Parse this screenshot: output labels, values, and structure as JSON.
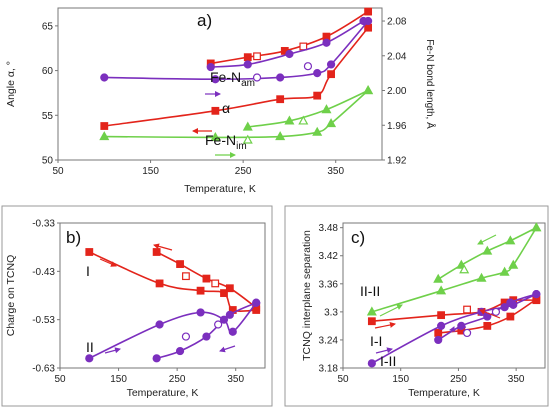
{
  "chart_data": [
    {
      "panel_label": "a)",
      "type": "line",
      "xlabel": "Temperature, K",
      "ylabel": "Angle α, °",
      "y2label": "Fe-N bond length, Å",
      "xlim": [
        50,
        400
      ],
      "ylim": [
        50,
        67
      ],
      "y2lim": [
        1.92,
        2.095
      ],
      "x_ticks": [
        "50",
        "150",
        "250",
        "350"
      ],
      "y_ticks": [
        "50",
        "55",
        "60",
        "65"
      ],
      "y2_ticks": [
        "1.92",
        "1.96",
        "2.00",
        "2.04",
        "2.08"
      ],
      "annotations": [
        {
          "text": "Fe-N",
          "sub": "am"
        },
        {
          "text": "α",
          "sub": ""
        },
        {
          "text": "Fe-N",
          "sub": "im"
        }
      ],
      "grid": false,
      "series": [
        {
          "color": "#e3241b",
          "marker": "square",
          "axis": "y",
          "arrow": "right",
          "x": [
            100,
            220,
            290,
            330,
            345,
            385
          ],
          "y": [
            53.8,
            55.5,
            56.8,
            57.2,
            59.6,
            64.8
          ]
        },
        {
          "color": "#e3241b",
          "marker": "square",
          "axis": "y",
          "arrow": "left",
          "x": [
            385,
            340,
            295,
            255,
            215
          ],
          "y": [
            66.6,
            63.8,
            62.2,
            61.5,
            60.8
          ]
        },
        {
          "color": "#e3241b",
          "marker": "square-open",
          "axis": "y",
          "x": [
            265,
            315
          ],
          "y": [
            61.6,
            62.7
          ]
        },
        {
          "color": "#7b2fbe",
          "marker": "circle",
          "axis": "y2",
          "arrow": "right",
          "x": [
            100,
            220,
            290,
            330,
            345,
            385
          ],
          "y": [
            2.015,
            2.013,
            2.015,
            2.02,
            2.03,
            2.08
          ]
        },
        {
          "color": "#7b2fbe",
          "marker": "circle",
          "axis": "y2",
          "arrow": "left",
          "x": [
            380,
            340,
            300,
            255,
            215
          ],
          "y": [
            2.08,
            2.055,
            2.042,
            2.03,
            2.027
          ]
        },
        {
          "color": "#7b2fbe",
          "marker": "circle-open",
          "axis": "y2",
          "x": [
            265,
            320
          ],
          "y": [
            2.015,
            2.028
          ]
        },
        {
          "color": "#6fd04a",
          "marker": "triangle",
          "axis": "y2",
          "arrow": "right",
          "x": [
            100,
            220,
            290,
            330,
            345,
            385
          ],
          "y": [
            1.947,
            1.946,
            1.947,
            1.952,
            1.962,
            2.0
          ]
        },
        {
          "color": "#6fd04a",
          "marker": "triangle",
          "axis": "y2",
          "arrow": "left",
          "x": [
            385,
            340,
            300,
            255
          ],
          "y": [
            2.0,
            1.978,
            1.965,
            1.958
          ]
        },
        {
          "color": "#6fd04a",
          "marker": "triangle-open",
          "axis": "y2",
          "x": [
            255,
            315
          ],
          "y": [
            1.943,
            1.965
          ]
        }
      ]
    },
    {
      "panel_label": "b)",
      "type": "line",
      "xlabel": "Temperature, K",
      "ylabel": "Charge on TCNQ",
      "xlim": [
        50,
        400
      ],
      "ylim": [
        -0.63,
        -0.33
      ],
      "x_ticks": [
        "50",
        "150",
        "250",
        "350"
      ],
      "y_ticks": [
        "-0.33",
        "-0.43",
        "-0.53",
        "-0.63"
      ],
      "annotations": [
        {
          "text": "I",
          "sub": ""
        },
        {
          "text": "II",
          "sub": ""
        }
      ],
      "grid": false,
      "series": [
        {
          "color": "#e3241b",
          "marker": "square",
          "arrow": "right",
          "x": [
            100,
            220,
            290,
            330,
            345,
            385
          ],
          "y": [
            -0.39,
            -0.455,
            -0.47,
            -0.475,
            -0.51,
            -0.51
          ]
        },
        {
          "color": "#e3241b",
          "marker": "square",
          "arrow": "left",
          "x": [
            385,
            340,
            300,
            255,
            215
          ],
          "y": [
            -0.505,
            -0.465,
            -0.445,
            -0.415,
            -0.39
          ]
        },
        {
          "color": "#e3241b",
          "marker": "square-open",
          "x": [
            265,
            315
          ],
          "y": [
            -0.44,
            -0.455
          ]
        },
        {
          "color": "#7b2fbe",
          "marker": "circle",
          "arrow": "right",
          "x": [
            100,
            220,
            290,
            330,
            345,
            385
          ],
          "y": [
            -0.61,
            -0.54,
            -0.515,
            -0.53,
            -0.555,
            -0.495
          ]
        },
        {
          "color": "#7b2fbe",
          "marker": "circle",
          "arrow": "left",
          "x": [
            385,
            340,
            300,
            255,
            215
          ],
          "y": [
            -0.495,
            -0.52,
            -0.565,
            -0.595,
            -0.61
          ]
        },
        {
          "color": "#7b2fbe",
          "marker": "circle-open",
          "x": [
            265,
            320
          ],
          "y": [
            -0.565,
            -0.54
          ]
        }
      ]
    },
    {
      "panel_label": "c)",
      "type": "line",
      "xlabel": "Temperature, K",
      "ylabel": "TCNQ interplane separation",
      "xlim": [
        50,
        400
      ],
      "ylim": [
        3.18,
        3.49
      ],
      "x_ticks": [
        "50",
        "150",
        "250",
        "350"
      ],
      "y_ticks": [
        "3.18",
        "3.24",
        "3.3",
        "3.36",
        "3.42",
        "3.48"
      ],
      "annotations": [
        {
          "text": "II-II",
          "sub": ""
        },
        {
          "text": "I-I",
          "sub": ""
        },
        {
          "text": "I-II",
          "sub": ""
        }
      ],
      "grid": false,
      "series": [
        {
          "color": "#6fd04a",
          "marker": "triangle",
          "arrow": "right",
          "x": [
            100,
            220,
            290,
            330,
            345,
            385
          ],
          "y": [
            3.3,
            3.345,
            3.372,
            3.385,
            3.4,
            3.48
          ]
        },
        {
          "color": "#6fd04a",
          "marker": "triangle",
          "arrow": "left",
          "x": [
            385,
            340,
            300,
            255,
            215
          ],
          "y": [
            3.48,
            3.452,
            3.43,
            3.4,
            3.37
          ]
        },
        {
          "color": "#6fd04a",
          "marker": "triangle-open",
          "x": [
            260
          ],
          "y": [
            3.39
          ]
        },
        {
          "color": "#e3241b",
          "marker": "square",
          "arrow": "right",
          "x": [
            100,
            220,
            290,
            330,
            345,
            385
          ],
          "y": [
            3.28,
            3.293,
            3.3,
            3.32,
            3.325,
            3.325
          ]
        },
        {
          "color": "#e3241b",
          "marker": "square",
          "arrow": "left",
          "x": [
            385,
            340,
            300,
            255,
            215
          ],
          "y": [
            3.327,
            3.29,
            3.27,
            3.26,
            3.255
          ]
        },
        {
          "color": "#e3241b",
          "marker": "square-open",
          "x": [
            265
          ],
          "y": [
            3.305
          ]
        },
        {
          "color": "#7b2fbe",
          "marker": "circle",
          "arrow": "right",
          "x": [
            100,
            220,
            290,
            330,
            345,
            385
          ],
          "y": [
            3.19,
            3.27,
            3.3,
            3.31,
            3.315,
            3.338
          ]
        },
        {
          "color": "#7b2fbe",
          "marker": "circle",
          "arrow": "left",
          "x": [
            385,
            340,
            300,
            255,
            215
          ],
          "y": [
            3.338,
            3.32,
            3.29,
            3.27,
            3.24
          ]
        },
        {
          "color": "#7b2fbe",
          "marker": "circle-open",
          "x": [
            265,
            315
          ],
          "y": [
            3.255,
            3.3
          ]
        }
      ]
    }
  ]
}
